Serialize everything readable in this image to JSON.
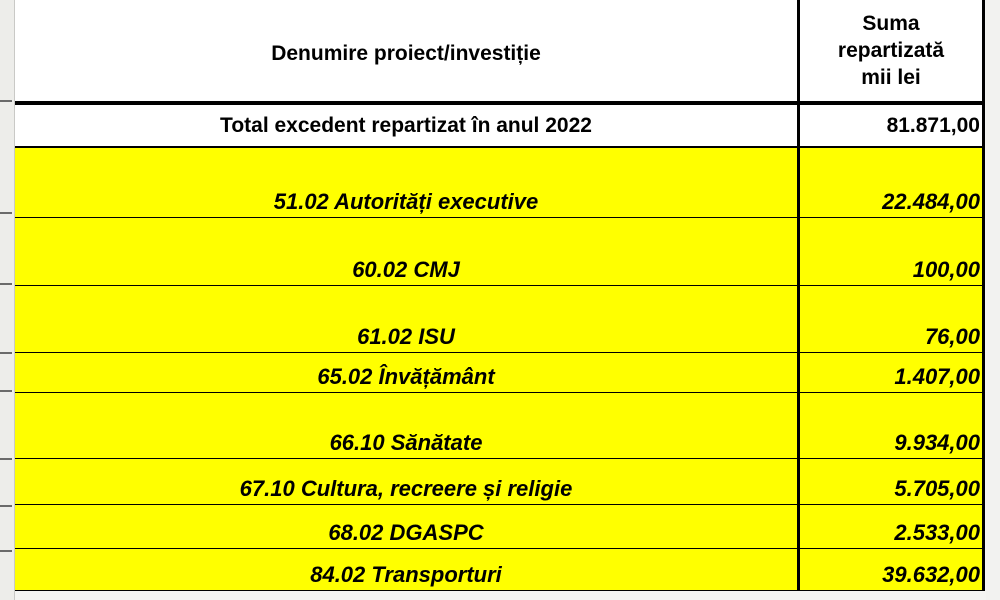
{
  "table": {
    "header": {
      "name": "Denumire proiect/investiție",
      "sum_line1": "Suma",
      "sum_line2": "repartizată",
      "sum_line3": "mii lei"
    },
    "total": {
      "name": "Total excedent repartizat în anul  2022",
      "value": "81.871,00"
    },
    "rows": [
      {
        "name": "51.02 Autorități executive",
        "value": "22.484,00"
      },
      {
        "name": "60.02 CMJ",
        "value": "100,00"
      },
      {
        "name": "61.02 ISU",
        "value": "76,00"
      },
      {
        "name": "65.02 Învățământ",
        "value": "1.407,00"
      },
      {
        "name": "66.10 Sănătate",
        "value": "9.934,00"
      },
      {
        "name": "67.10 Cultura, recreere și religie",
        "value": "5.705,00"
      },
      {
        "name": "68.02 DGASPC",
        "value": "2.533,00"
      },
      {
        "name": "84.02 Transporturi",
        "value": "39.632,00"
      }
    ]
  },
  "colors": {
    "highlight": "#ffff00",
    "header_bg": "#ffffff",
    "border": "#000000"
  }
}
